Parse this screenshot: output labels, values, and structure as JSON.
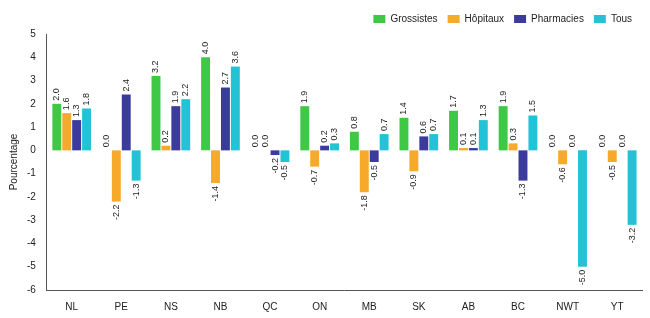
{
  "chart_data": {
    "type": "bar",
    "y_label": "Pourcentage",
    "categories": [
      "NL",
      "PE",
      "NS",
      "NB",
      "QC",
      "ON",
      "MB",
      "SK",
      "AB",
      "BC",
      "NWT",
      "YT"
    ],
    "series": [
      {
        "name": "Grossistes",
        "color": "#3fc846",
        "values": [
          2.0,
          0.0,
          3.2,
          4.0,
          0.0,
          1.9,
          0.8,
          1.4,
          1.7,
          1.9,
          0.0,
          0.0
        ],
        "value_labels": [
          "2.0",
          "0.0",
          "3.2",
          "4.0",
          "0.0",
          "1.9",
          "0.8",
          "1.4",
          "1.7",
          "1.9",
          "0.0",
          "0.0"
        ]
      },
      {
        "name": "Hôpitaux",
        "color": "#f6a92b",
        "values": [
          1.6,
          -2.2,
          0.2,
          -1.4,
          0.0,
          -0.7,
          -1.8,
          -0.9,
          0.1,
          0.3,
          -0.6,
          -0.5
        ],
        "value_labels": [
          "1.6",
          "-2.2",
          "0.2",
          "-1.4",
          "0.0",
          "-0.7",
          "-1.8",
          "-0.9",
          "0.1",
          "0.3",
          "-0.6",
          "-0.5"
        ]
      },
      {
        "name": "Pharmacies",
        "color": "#3b3b9e",
        "values": [
          1.3,
          2.4,
          1.9,
          2.7,
          -0.2,
          0.2,
          -0.5,
          0.6,
          0.1,
          -1.3,
          0.0,
          0.0
        ],
        "value_labels": [
          "1.3",
          "2.4",
          "1.9",
          "2.7",
          "-0.2",
          "0.2",
          "-0.5",
          "0.6",
          "0.1",
          "-1.3",
          "0.0",
          "0.0"
        ]
      },
      {
        "name": "Tous",
        "color": "#22c3d6",
        "values": [
          1.8,
          -1.3,
          2.2,
          3.6,
          -0.5,
          0.3,
          0.7,
          0.7,
          1.3,
          1.5,
          -5.0,
          -3.2
        ],
        "value_labels": [
          "1.8",
          "-1.3",
          "2.2",
          "3.6",
          "-0.5",
          "0.3",
          "0.7",
          "0.7",
          "1.3",
          "1.5",
          "-5.0",
          "-3.2"
        ]
      }
    ],
    "ylim": [
      -6,
      5
    ],
    "yticks": [
      -6,
      -5,
      -4,
      -3,
      -2,
      -1,
      0,
      1,
      2,
      3,
      4,
      5
    ],
    "grid": false,
    "legend": "top-right",
    "data_labels": true
  }
}
